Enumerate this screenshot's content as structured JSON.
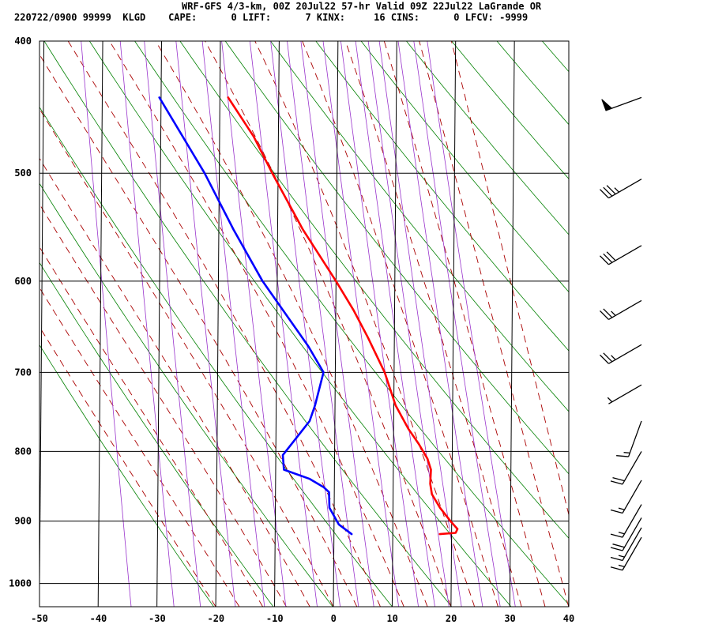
{
  "header": {
    "line1": "WRF-GFS 4/3-km, 00Z 20Jul22 57-hr Valid 09Z 22Jul22 LaGrande OR",
    "line2": "220722/0900 99999  KLGD    CAPE:      0 LIFT:      7 KINX:     16 CINS:      0 LFCV: -9999"
  },
  "chart_data": {
    "type": "line",
    "title": "WRF-GFS 4/3-km, 00Z 20Jul22 57-hr Valid 09Z 22Jul22 LaGrande OR",
    "xlim": [
      -50,
      40
    ],
    "ylim_pressure_hpa": [
      1040,
      400
    ],
    "y_scale": "log-pressure",
    "x_ticks": [
      -50,
      -40,
      -30,
      -20,
      -10,
      0,
      10,
      20,
      30,
      40
    ],
    "y_ticks": [
      400,
      500,
      600,
      700,
      800,
      900,
      1000
    ],
    "grid": true,
    "series": [
      {
        "color": "#ff0000",
        "points": [
          {
            "p": 920,
            "t": 18.0
          },
          {
            "p": 918,
            "t": 20.7
          },
          {
            "p": 912,
            "t": 21.0
          },
          {
            "p": 900,
            "t": 19.8
          },
          {
            "p": 880,
            "t": 18.0
          },
          {
            "p": 860,
            "t": 16.6
          },
          {
            "p": 845,
            "t": 16.3
          },
          {
            "p": 825,
            "t": 16.4
          },
          {
            "p": 810,
            "t": 15.8
          },
          {
            "p": 790,
            "t": 14.3
          },
          {
            "p": 770,
            "t": 12.5
          },
          {
            "p": 740,
            "t": 10.3
          },
          {
            "p": 700,
            "t": 8.4
          },
          {
            "p": 660,
            "t": 5.5
          },
          {
            "p": 630,
            "t": 3.0
          },
          {
            "p": 600,
            "t": 0.0
          },
          {
            "p": 550,
            "t": -5.7
          },
          {
            "p": 500,
            "t": -11.0
          },
          {
            "p": 470,
            "t": -14.2
          },
          {
            "p": 440,
            "t": -18.6
          }
        ]
      },
      {
        "color": "#0000ff",
        "points": [
          {
            "p": 920,
            "t": 3.0
          },
          {
            "p": 905,
            "t": 0.8
          },
          {
            "p": 880,
            "t": -0.8
          },
          {
            "p": 857,
            "t": -0.9
          },
          {
            "p": 850,
            "t": -1.8
          },
          {
            "p": 838,
            "t": -4.2
          },
          {
            "p": 825,
            "t": -8.6
          },
          {
            "p": 805,
            "t": -8.8
          },
          {
            "p": 760,
            "t": -4.3
          },
          {
            "p": 740,
            "t": -3.4
          },
          {
            "p": 700,
            "t": -2.0
          },
          {
            "p": 670,
            "t": -4.6
          },
          {
            "p": 600,
            "t": -12.5
          },
          {
            "p": 550,
            "t": -17.5
          },
          {
            "p": 500,
            "t": -22.5
          },
          {
            "p": 440,
            "t": -30.3
          }
        ]
      }
    ],
    "wind_barbs": [
      {
        "p": 440,
        "dir": 250,
        "speed_kt": 50
      },
      {
        "p": 505,
        "dir": 240,
        "speed_kt": 35
      },
      {
        "p": 565,
        "dir": 240,
        "speed_kt": 30
      },
      {
        "p": 620,
        "dir": 240,
        "speed_kt": 25
      },
      {
        "p": 668,
        "dir": 240,
        "speed_kt": 25
      },
      {
        "p": 715,
        "dir": 240,
        "speed_kt": 5
      },
      {
        "p": 760,
        "dir": 200,
        "speed_kt": 15
      },
      {
        "p": 800,
        "dir": 210,
        "speed_kt": 20
      },
      {
        "p": 840,
        "dir": 210,
        "speed_kt": 15
      },
      {
        "p": 875,
        "dir": 210,
        "speed_kt": 15
      },
      {
        "p": 895,
        "dir": 210,
        "speed_kt": 20
      },
      {
        "p": 910,
        "dir": 210,
        "speed_kt": 15
      },
      {
        "p": 925,
        "dir": 210,
        "speed_kt": 15
      }
    ],
    "colors": {
      "isotherm_grid": "#000000",
      "dry_adiabat": "#008000",
      "moist_adiabat": "#aa0000",
      "mixing_ratio": "#9933cc",
      "temperature": "#ff0000",
      "dewpoint": "#0000ff",
      "wind_barb": "#000000"
    }
  }
}
